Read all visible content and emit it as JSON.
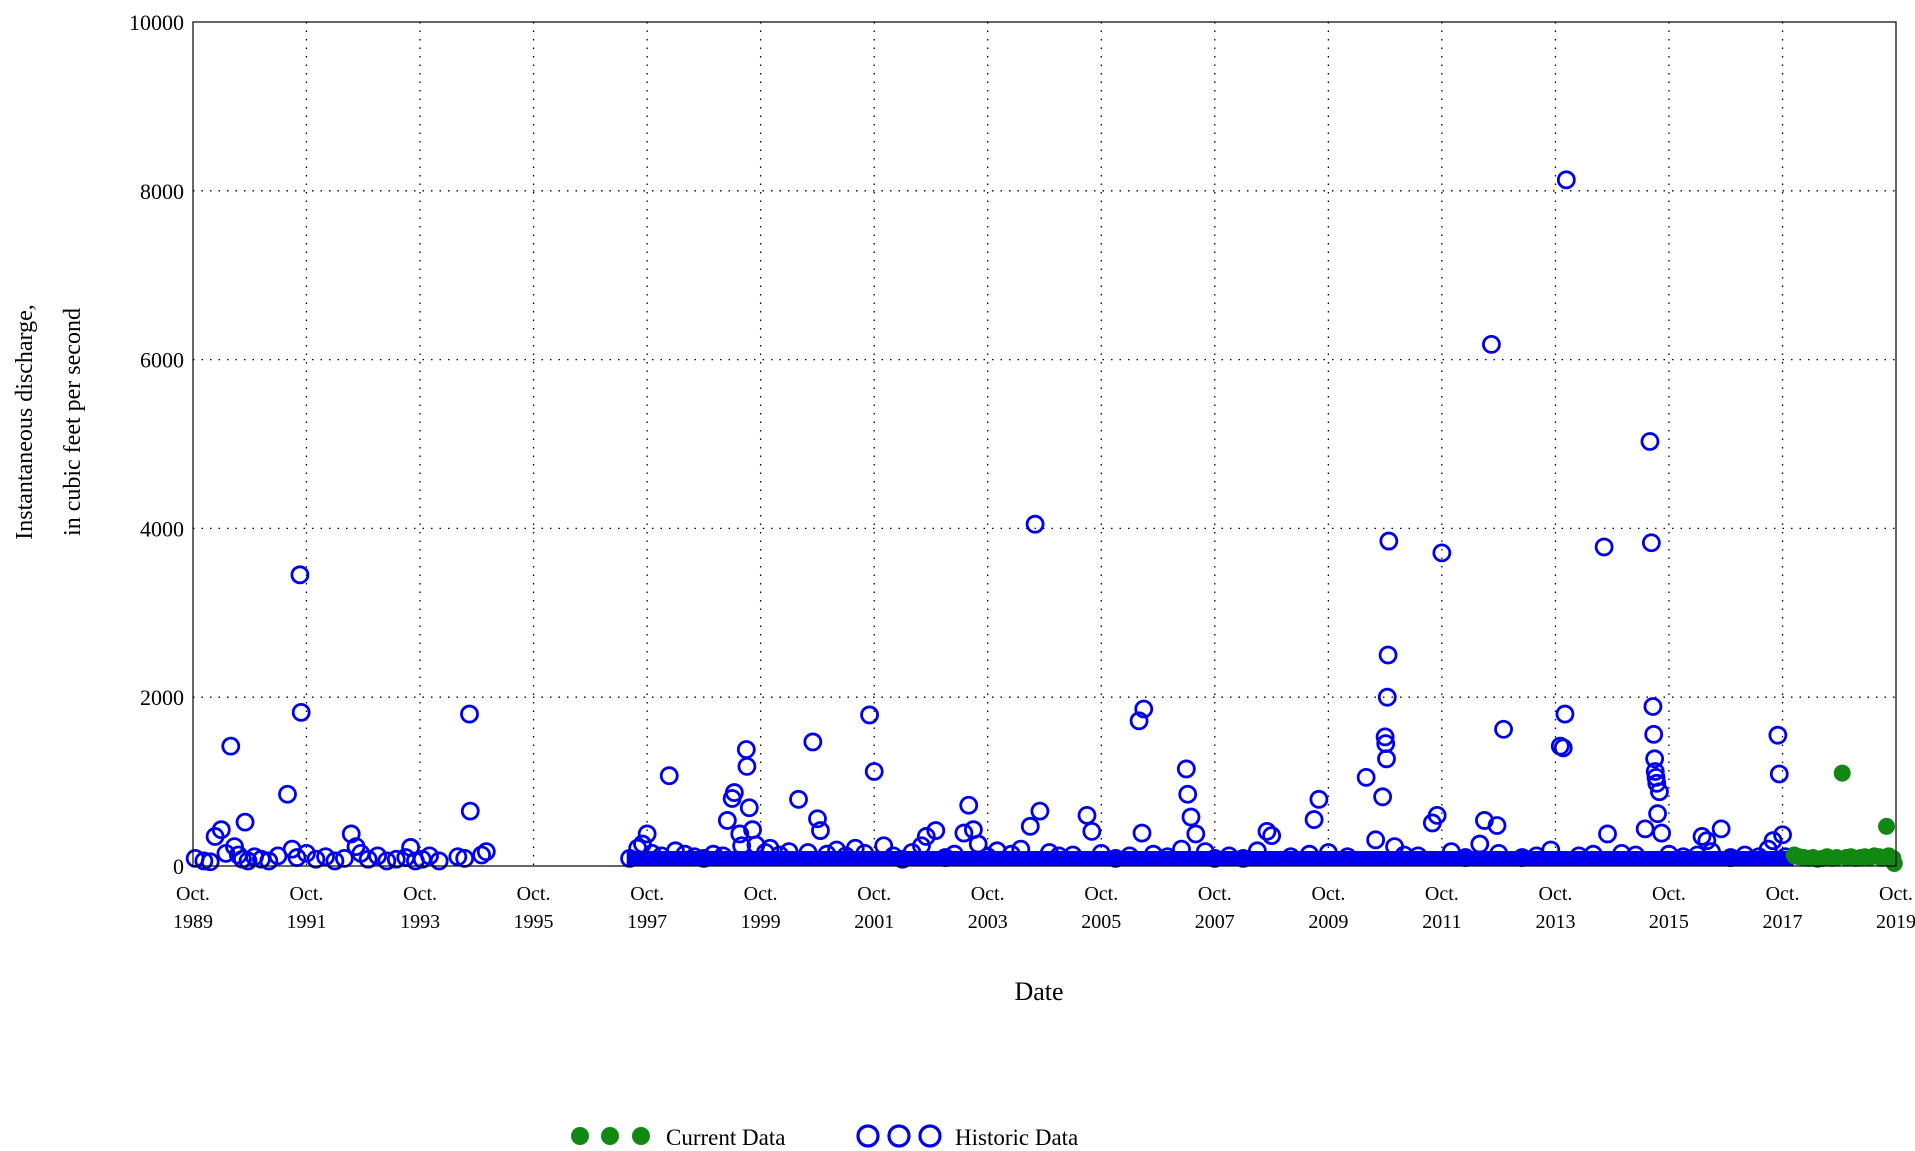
{
  "chart_data": {
    "type": "scatter",
    "xlabel": "Date",
    "ylabel": [
      "Instantaneous discharge,",
      "in cubic feet per second"
    ],
    "ylim": [
      0,
      10000
    ],
    "xlim": [
      "1989-10-01",
      "2019-10-01"
    ],
    "grid": true,
    "legend_position": "bottom-center",
    "y_ticks": [
      0,
      2000,
      4000,
      6000,
      8000,
      10000
    ],
    "x_ticks": [
      {
        "date": "1989-10-01",
        "line1": "Oct.",
        "line2": "1989"
      },
      {
        "date": "1991-10-01",
        "line1": "Oct.",
        "line2": "1991"
      },
      {
        "date": "1993-10-01",
        "line1": "Oct.",
        "line2": "1993"
      },
      {
        "date": "1995-10-01",
        "line1": "Oct.",
        "line2": "1995"
      },
      {
        "date": "1997-10-01",
        "line1": "Oct.",
        "line2": "1997"
      },
      {
        "date": "1999-10-01",
        "line1": "Oct.",
        "line2": "1999"
      },
      {
        "date": "2001-10-01",
        "line1": "Oct.",
        "line2": "2001"
      },
      {
        "date": "2003-10-01",
        "line1": "Oct.",
        "line2": "2003"
      },
      {
        "date": "2005-10-01",
        "line1": "Oct.",
        "line2": "2005"
      },
      {
        "date": "2007-10-01",
        "line1": "Oct.",
        "line2": "2007"
      },
      {
        "date": "2009-10-01",
        "line1": "Oct.",
        "line2": "2009"
      },
      {
        "date": "2011-10-01",
        "line1": "Oct.",
        "line2": "2011"
      },
      {
        "date": "2013-10-01",
        "line1": "Oct.",
        "line2": "2013"
      },
      {
        "date": "2015-10-01",
        "line1": "Oct.",
        "line2": "2015"
      },
      {
        "date": "2017-10-01",
        "line1": "Oct.",
        "line2": "2017"
      },
      {
        "date": "2019-10-01",
        "line1": "Oct.",
        "line2": "2019"
      }
    ],
    "series": [
      {
        "name": "Historic Data",
        "color": "#0000ee",
        "marker": "open-circle",
        "points": [
          [
            "1989-10-15",
            90
          ],
          [
            "1989-12-10",
            60
          ],
          [
            "1990-01-20",
            50
          ],
          [
            "1990-02-20",
            350
          ],
          [
            "1990-04-01",
            430
          ],
          [
            "1990-05-01",
            150
          ],
          [
            "1990-06-01",
            1420
          ],
          [
            "1990-06-25",
            230
          ],
          [
            "1990-07-20",
            130
          ],
          [
            "1990-08-15",
            80
          ],
          [
            "1990-09-01",
            520
          ],
          [
            "1990-09-20",
            60
          ],
          [
            "1990-11-01",
            110
          ],
          [
            "1990-12-15",
            80
          ],
          [
            "1991-02-01",
            60
          ],
          [
            "1991-04-01",
            120
          ],
          [
            "1991-06-01",
            850
          ],
          [
            "1991-07-01",
            200
          ],
          [
            "1991-08-01",
            100
          ],
          [
            "1991-08-20",
            3450
          ],
          [
            "1991-08-28",
            1820
          ],
          [
            "1991-10-01",
            150
          ],
          [
            "1991-12-01",
            80
          ],
          [
            "1992-02-01",
            110
          ],
          [
            "1992-04-01",
            60
          ],
          [
            "1992-06-01",
            90
          ],
          [
            "1992-07-15",
            380
          ],
          [
            "1992-08-15",
            230
          ],
          [
            "1992-09-15",
            150
          ],
          [
            "1992-11-01",
            80
          ],
          [
            "1993-01-01",
            120
          ],
          [
            "1993-03-01",
            60
          ],
          [
            "1993-05-01",
            80
          ],
          [
            "1993-07-01",
            100
          ],
          [
            "1993-08-01",
            220
          ],
          [
            "1993-09-01",
            60
          ],
          [
            "1993-10-15",
            80
          ],
          [
            "1993-12-01",
            120
          ],
          [
            "1994-02-01",
            60
          ],
          [
            "1994-06-01",
            110
          ],
          [
            "1994-07-15",
            90
          ],
          [
            "1994-08-15",
            1800
          ],
          [
            "1994-08-20",
            650
          ],
          [
            "1994-11-01",
            130
          ],
          [
            "1994-12-01",
            170
          ],
          [
            "1997-06-10",
            90
          ],
          [
            "1997-08-01",
            210
          ],
          [
            "1997-09-01",
            260
          ],
          [
            "1997-10-01",
            380
          ],
          [
            "1997-11-01",
            150
          ],
          [
            "1998-01-01",
            120
          ],
          [
            "1998-02-20",
            1070
          ],
          [
            "1998-04-01",
            180
          ],
          [
            "1998-06-01",
            140
          ],
          [
            "1998-08-01",
            110
          ],
          [
            "1998-10-01",
            90
          ],
          [
            "1998-12-01",
            140
          ],
          [
            "1999-02-01",
            120
          ],
          [
            "1999-03-01",
            540
          ],
          [
            "1999-04-01",
            800
          ],
          [
            "1999-04-15",
            870
          ],
          [
            "1999-05-20",
            380
          ],
          [
            "1999-06-01",
            240
          ],
          [
            "1999-07-01",
            1380
          ],
          [
            "1999-07-05",
            1180
          ],
          [
            "1999-07-20",
            690
          ],
          [
            "1999-08-10",
            430
          ],
          [
            "1999-09-01",
            250
          ],
          [
            "1999-11-01",
            160
          ],
          [
            "1999-12-01",
            210
          ],
          [
            "2000-02-01",
            130
          ],
          [
            "2000-04-01",
            170
          ],
          [
            "2000-06-01",
            790
          ],
          [
            "2000-08-01",
            160
          ],
          [
            "2000-09-01",
            1470
          ],
          [
            "2000-10-01",
            560
          ],
          [
            "2000-10-20",
            420
          ],
          [
            "2000-12-01",
            140
          ],
          [
            "2001-02-01",
            190
          ],
          [
            "2001-04-01",
            120
          ],
          [
            "2001-06-01",
            210
          ],
          [
            "2001-08-01",
            150
          ],
          [
            "2001-09-01",
            1790
          ],
          [
            "2001-10-01",
            1120
          ],
          [
            "2001-12-01",
            240
          ],
          [
            "2002-02-01",
            120
          ],
          [
            "2002-04-01",
            80
          ],
          [
            "2002-06-01",
            160
          ],
          [
            "2002-08-01",
            240
          ],
          [
            "2002-09-01",
            350
          ],
          [
            "2002-11-01",
            420
          ],
          [
            "2003-01-01",
            100
          ],
          [
            "2003-03-01",
            140
          ],
          [
            "2003-05-01",
            390
          ],
          [
            "2003-06-01",
            720
          ],
          [
            "2003-07-01",
            430
          ],
          [
            "2003-08-01",
            260
          ],
          [
            "2003-10-01",
            110
          ],
          [
            "2003-12-01",
            180
          ],
          [
            "2004-03-01",
            140
          ],
          [
            "2004-05-01",
            200
          ],
          [
            "2004-07-01",
            470
          ],
          [
            "2004-08-01",
            4050
          ],
          [
            "2004-09-01",
            650
          ],
          [
            "2004-11-01",
            160
          ],
          [
            "2005-01-01",
            120
          ],
          [
            "2005-04-01",
            130
          ],
          [
            "2005-07-01",
            600
          ],
          [
            "2005-08-01",
            410
          ],
          [
            "2005-10-01",
            150
          ],
          [
            "2006-01-01",
            90
          ],
          [
            "2006-04-01",
            120
          ],
          [
            "2006-06-01",
            1720
          ],
          [
            "2006-06-20",
            390
          ],
          [
            "2006-07-01",
            1860
          ],
          [
            "2006-09-01",
            140
          ],
          [
            "2006-12-01",
            110
          ],
          [
            "2007-03-01",
            200
          ],
          [
            "2007-04-01",
            1150
          ],
          [
            "2007-04-10",
            850
          ],
          [
            "2007-05-01",
            580
          ],
          [
            "2007-06-01",
            380
          ],
          [
            "2007-08-01",
            170
          ],
          [
            "2007-10-01",
            90
          ],
          [
            "2008-01-01",
            120
          ],
          [
            "2008-04-01",
            90
          ],
          [
            "2008-07-01",
            180
          ],
          [
            "2008-09-01",
            410
          ],
          [
            "2008-10-01",
            360
          ],
          [
            "2009-02-01",
            110
          ],
          [
            "2009-06-01",
            140
          ],
          [
            "2009-07-01",
            550
          ],
          [
            "2009-08-01",
            790
          ],
          [
            "2009-10-01",
            160
          ],
          [
            "2010-02-01",
            110
          ],
          [
            "2010-06-01",
            1050
          ],
          [
            "2010-08-01",
            310
          ],
          [
            "2010-09-15",
            820
          ],
          [
            "2010-10-01",
            1530
          ],
          [
            "2010-10-05",
            1450
          ],
          [
            "2010-10-10",
            1270
          ],
          [
            "2010-10-15",
            2000
          ],
          [
            "2010-10-20",
            2500
          ],
          [
            "2010-10-25",
            3850
          ],
          [
            "2010-12-01",
            230
          ],
          [
            "2011-02-01",
            130
          ],
          [
            "2011-05-01",
            120
          ],
          [
            "2011-08-01",
            510
          ],
          [
            "2011-09-01",
            600
          ],
          [
            "2011-10-01",
            3710
          ],
          [
            "2011-12-01",
            170
          ],
          [
            "2012-03-01",
            100
          ],
          [
            "2012-06-01",
            260
          ],
          [
            "2012-07-01",
            540
          ],
          [
            "2012-08-15",
            6180
          ],
          [
            "2012-09-20",
            480
          ],
          [
            "2012-10-01",
            150
          ],
          [
            "2012-11-01",
            1620
          ],
          [
            "2013-03-01",
            100
          ],
          [
            "2013-06-01",
            120
          ],
          [
            "2013-09-01",
            190
          ],
          [
            "2013-11-01",
            1420
          ],
          [
            "2013-11-20",
            1400
          ],
          [
            "2013-12-01",
            1800
          ],
          [
            "2013-12-10",
            8130
          ],
          [
            "2014-03-01",
            120
          ],
          [
            "2014-06-01",
            140
          ],
          [
            "2014-08-10",
            3780
          ],
          [
            "2014-09-01",
            380
          ],
          [
            "2014-12-01",
            150
          ],
          [
            "2015-03-01",
            130
          ],
          [
            "2015-05-01",
            440
          ],
          [
            "2015-06-01",
            5030
          ],
          [
            "2015-06-10",
            3830
          ],
          [
            "2015-06-20",
            1890
          ],
          [
            "2015-06-25",
            1560
          ],
          [
            "2015-07-01",
            1270
          ],
          [
            "2015-07-05",
            1120
          ],
          [
            "2015-07-10",
            1050
          ],
          [
            "2015-07-15",
            980
          ],
          [
            "2015-07-20",
            620
          ],
          [
            "2015-08-01",
            880
          ],
          [
            "2015-08-15",
            390
          ],
          [
            "2015-10-01",
            140
          ],
          [
            "2016-01-01",
            110
          ],
          [
            "2016-04-01",
            130
          ],
          [
            "2016-05-01",
            350
          ],
          [
            "2016-06-01",
            300
          ],
          [
            "2016-07-01",
            170
          ],
          [
            "2016-09-01",
            440
          ],
          [
            "2016-11-01",
            100
          ],
          [
            "2017-02-01",
            130
          ],
          [
            "2017-05-01",
            110
          ],
          [
            "2017-07-01",
            200
          ],
          [
            "2017-08-01",
            300
          ],
          [
            "2017-09-01",
            1550
          ],
          [
            "2017-09-10",
            1090
          ],
          [
            "2017-10-01",
            370
          ],
          [
            "2017-10-20",
            110
          ]
        ],
        "baseline_band": {
          "from": "1997-06-01",
          "to": "2017-12-01",
          "typical_min": 20,
          "typical_max": 160
        }
      },
      {
        "name": "Current Data",
        "color": "#118811",
        "marker": "filled-circle",
        "points": [
          [
            "2017-12-15",
            130
          ],
          [
            "2018-01-15",
            110
          ],
          [
            "2018-02-15",
            100
          ],
          [
            "2018-03-15",
            90
          ],
          [
            "2018-04-15",
            100
          ],
          [
            "2018-05-15",
            80
          ],
          [
            "2018-06-15",
            90
          ],
          [
            "2018-07-15",
            110
          ],
          [
            "2018-08-15",
            90
          ],
          [
            "2018-09-15",
            100
          ],
          [
            "2018-10-20",
            1100
          ],
          [
            "2018-11-15",
            100
          ],
          [
            "2018-12-15",
            110
          ],
          [
            "2019-01-15",
            90
          ],
          [
            "2019-02-15",
            100
          ],
          [
            "2019-03-15",
            110
          ],
          [
            "2019-04-15",
            100
          ],
          [
            "2019-05-15",
            120
          ],
          [
            "2019-06-15",
            110
          ],
          [
            "2019-07-01",
            90
          ],
          [
            "2019-08-01",
            470
          ],
          [
            "2019-08-15",
            120
          ],
          [
            "2019-09-01",
            80
          ],
          [
            "2019-09-20",
            30
          ]
        ]
      }
    ]
  },
  "legend": {
    "current_label": "Current Data",
    "historic_label": "Historic Data"
  }
}
